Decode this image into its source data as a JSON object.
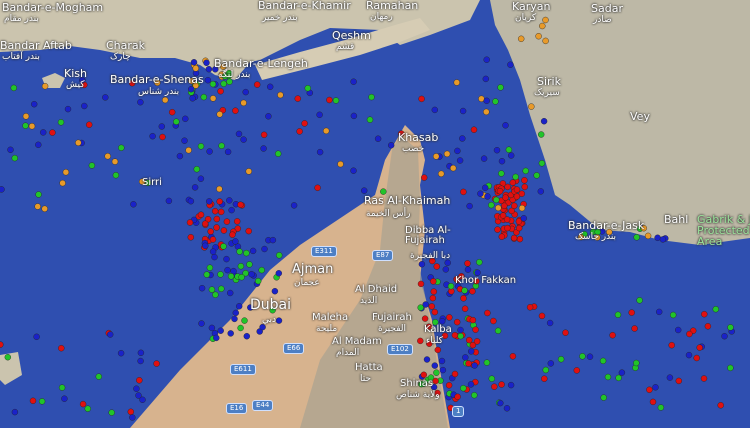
{
  "map": {
    "colors": {
      "sea": "#2f4fb0",
      "land_iran": "#c9c2ad",
      "land_uae": "#d9b48f",
      "land_mountain": "#a9a493"
    },
    "ship_colors": {
      "cargo": "#1a22c8",
      "tanker": "#e01010",
      "passenger": "#21c42a",
      "tug": "#e89a2a",
      "other": "#3fd6d6",
      "special": "#d02ad0"
    }
  },
  "places": [
    {
      "name": "Bandar-e-Mogham",
      "ar": "بندر مقام"
    },
    {
      "name": "Bandar Aftab",
      "ar": "بندر آفتاب"
    },
    {
      "name": "Charak",
      "ar": "چارک"
    },
    {
      "name": "Kish",
      "ar": "کیش"
    },
    {
      "name": "Bandar-e-Shenas",
      "ar": "بندر شناس"
    },
    {
      "name": "Bandar-e-Lengeh",
      "ar": "بندر لنگه"
    },
    {
      "name": "Bandar-e-Khamir",
      "ar": "بندر خمیر"
    },
    {
      "name": "Qeshm",
      "ar": "قشم"
    },
    {
      "name": "Ramahan",
      "ar": "رمهان"
    },
    {
      "name": "Karyan",
      "ar": "کریان"
    },
    {
      "name": "Sadar",
      "ar": "صادر"
    },
    {
      "name": "Sirik",
      "ar": "سیریک"
    },
    {
      "name": "Vey",
      "ar": "وی"
    },
    {
      "name": "Bandar-e-Jask",
      "ar": "بندر جاسک"
    },
    {
      "name": "Bahl",
      "ar": "بل"
    },
    {
      "name": "Gabrik & Jask Protected Area"
    },
    {
      "name": "Khasab",
      "ar": "خصب"
    },
    {
      "name": "Ras Al-Khaimah",
      "ar": "رأس الخيمة"
    },
    {
      "name": "Dibba Al-Fujairah",
      "ar": "دبا الفجيرة"
    },
    {
      "name": "Ajman",
      "ar": "عجمان"
    },
    {
      "name": "Dubai",
      "ar": "دبي"
    },
    {
      "name": "Al Dhaid",
      "ar": "الذيد"
    },
    {
      "name": "Maleha",
      "ar": "مليحة"
    },
    {
      "name": "Fujairah",
      "ar": "الفجيرة"
    },
    {
      "name": "Khor Fakkan"
    },
    {
      "name": "Kalba",
      "ar": "كلباء"
    },
    {
      "name": "Al Madam",
      "ar": "المدام"
    },
    {
      "name": "Hatta",
      "ar": "حتا"
    },
    {
      "name": "Shinas",
      "ar": "ولاية شناص"
    },
    {
      "name": "Sirri"
    }
  ],
  "roads": [
    "E311",
    "E87",
    "E89",
    "E102",
    "E66",
    "E611",
    "E16",
    "E44",
    "1"
  ]
}
